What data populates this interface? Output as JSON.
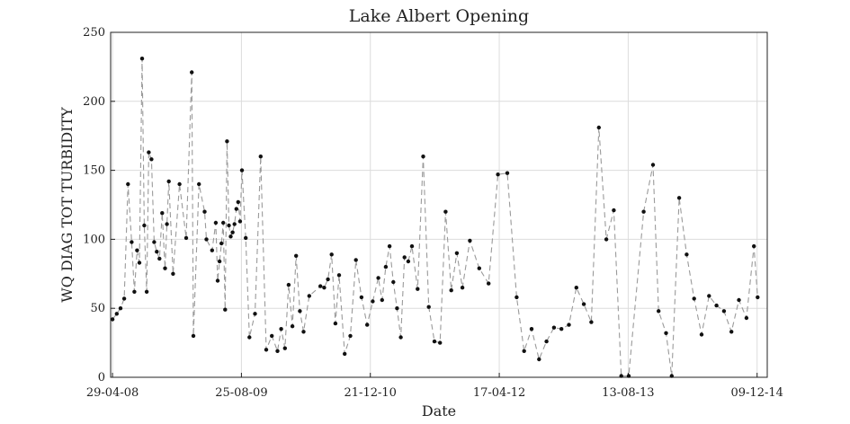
{
  "chart_data": {
    "type": "scatter",
    "title": "Lake Albert Opening",
    "xlabel": "Date",
    "ylabel": "WQ DIAG TOT TURBIDITY",
    "ylim": [
      0,
      250
    ],
    "xlim": [
      "2008-04-22",
      "2015-01-16"
    ],
    "yticks": [
      0,
      50,
      100,
      150,
      200,
      250
    ],
    "xticks": [
      {
        "date": "2008-04-29",
        "label": "29-04-08"
      },
      {
        "date": "2009-08-25",
        "label": "25-08-09"
      },
      {
        "date": "2010-12-21",
        "label": "21-12-10"
      },
      {
        "date": "2012-04-17",
        "label": "17-04-12"
      },
      {
        "date": "2013-08-13",
        "label": "13-08-13"
      },
      {
        "date": "2014-12-09",
        "label": "09-12-14"
      }
    ],
    "grid": true,
    "line_style": "dashed",
    "series": [
      {
        "x": [
          "2008-04-29",
          "2008-05-15",
          "2008-05-29",
          "2008-06-12",
          "2008-06-26",
          "2008-07-10",
          "2008-07-20",
          "2008-07-30",
          "2008-08-08",
          "2008-08-18",
          "2008-08-26",
          "2008-09-04",
          "2008-09-12",
          "2008-09-22",
          "2008-10-02",
          "2008-10-12",
          "2008-10-22",
          "2008-11-01",
          "2008-11-12",
          "2008-11-19",
          "2008-11-26",
          "2008-12-12",
          "2009-01-05",
          "2009-01-30",
          "2009-02-20",
          "2009-02-26",
          "2009-03-19",
          "2009-04-09",
          "2009-04-16",
          "2009-05-07",
          "2009-05-21",
          "2009-05-28",
          "2009-06-04",
          "2009-06-11",
          "2009-06-18",
          "2009-06-25",
          "2009-07-02",
          "2009-07-09",
          "2009-07-16",
          "2009-07-23",
          "2009-07-30",
          "2009-08-06",
          "2009-08-13",
          "2009-08-20",
          "2009-08-27",
          "2009-09-10",
          "2009-09-24",
          "2009-10-15",
          "2009-11-05",
          "2009-11-26",
          "2009-12-17",
          "2010-01-07",
          "2010-01-21",
          "2010-02-04",
          "2010-02-18",
          "2010-03-04",
          "2010-03-18",
          "2010-04-01",
          "2010-04-15",
          "2010-05-06",
          "2010-06-17",
          "2010-07-01",
          "2010-07-15",
          "2010-07-29",
          "2010-08-12",
          "2010-08-26",
          "2010-09-16",
          "2010-10-07",
          "2010-10-28",
          "2010-11-18",
          "2010-12-09",
          "2010-12-30",
          "2011-01-20",
          "2011-02-03",
          "2011-02-17",
          "2011-03-03",
          "2011-03-17",
          "2011-03-31",
          "2011-04-14",
          "2011-04-28",
          "2011-05-12",
          "2011-05-26",
          "2011-06-16",
          "2011-07-07",
          "2011-07-28",
          "2011-08-18",
          "2011-09-08",
          "2011-09-29",
          "2011-10-20",
          "2011-11-10",
          "2011-12-01",
          "2011-12-29",
          "2012-02-02",
          "2012-03-08",
          "2012-04-12",
          "2012-05-17",
          "2012-06-21",
          "2012-07-19",
          "2012-08-16",
          "2012-09-13",
          "2012-10-11",
          "2012-11-08",
          "2012-12-06",
          "2013-01-03",
          "2013-01-31",
          "2013-02-28",
          "2013-03-28",
          "2013-04-25",
          "2013-05-23",
          "2013-06-20",
          "2013-07-18",
          "2013-08-15",
          "2013-10-10",
          "2013-11-14",
          "2013-12-05",
          "2014-01-02",
          "2014-01-23",
          "2014-02-20",
          "2014-03-20",
          "2014-04-17",
          "2014-05-15",
          "2014-06-12",
          "2014-07-10",
          "2014-08-07",
          "2014-09-04",
          "2014-10-02",
          "2014-10-30",
          "2014-11-27",
          "2014-12-11"
        ],
        "y": [
          42,
          46,
          50,
          57,
          140,
          98,
          62,
          92,
          83,
          231,
          110,
          62,
          163,
          158,
          98,
          91,
          86,
          119,
          79,
          111,
          142,
          75,
          140,
          101,
          221,
          30,
          140,
          120,
          100,
          92,
          112,
          70,
          84,
          97,
          112,
          49,
          171,
          110,
          102,
          105,
          111,
          122,
          127,
          113,
          150,
          101,
          29,
          46,
          160,
          20,
          30,
          19,
          35,
          21,
          67,
          37,
          88,
          48,
          33,
          59,
          66,
          65,
          71,
          89,
          39,
          74,
          17,
          30,
          85,
          58,
          38,
          55,
          72,
          56,
          80,
          95,
          69,
          50,
          29,
          87,
          84,
          95,
          64,
          160,
          51,
          26,
          25,
          120,
          63,
          90,
          65,
          99,
          79,
          68,
          147,
          148,
          58,
          19,
          35,
          13,
          26,
          36,
          35,
          38,
          65,
          53,
          40,
          181,
          100,
          121,
          1,
          1,
          120,
          154,
          48,
          32,
          1,
          130,
          89,
          57,
          31,
          59,
          52,
          48,
          33,
          56,
          43,
          95,
          58
        ],
        "note_x_order": "sorted by date"
      }
    ]
  }
}
